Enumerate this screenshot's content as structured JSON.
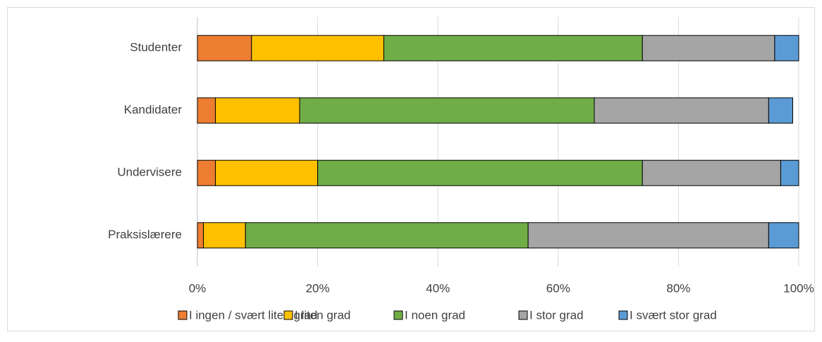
{
  "chart_data": {
    "type": "stacked_barh",
    "categories": [
      "Studenter",
      "Kandidater",
      "Undervisere",
      "Praksislærere"
    ],
    "series": [
      {
        "name": "I ingen / svært liten grad",
        "color": "#ed7d31",
        "values": [
          9,
          3,
          3,
          1
        ]
      },
      {
        "name": "I liten grad",
        "color": "#ffc000",
        "values": [
          22,
          14,
          17,
          7
        ]
      },
      {
        "name": "I noen grad",
        "color": "#70ad47",
        "values": [
          43,
          49,
          54,
          47
        ]
      },
      {
        "name": "I stor grad",
        "color": "#a5a5a5",
        "values": [
          22,
          29,
          23,
          40
        ]
      },
      {
        "name": "I svært stor grad",
        "color": "#5b9bd5",
        "values": [
          4,
          4,
          3,
          5
        ]
      }
    ],
    "xlim": [
      0,
      100
    ],
    "xticks": [
      {
        "value": 0,
        "label": "0%"
      },
      {
        "value": 20,
        "label": "20%"
      },
      {
        "value": 40,
        "label": "40%"
      },
      {
        "value": 60,
        "label": "60%"
      },
      {
        "value": 80,
        "label": "80%"
      },
      {
        "value": 100,
        "label": "100%"
      }
    ],
    "grid": true,
    "legend": "bottom"
  }
}
